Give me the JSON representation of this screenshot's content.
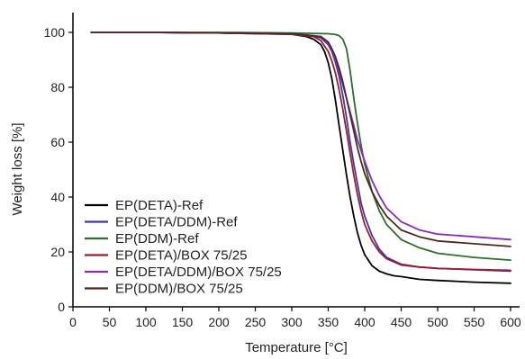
{
  "chart_data": {
    "type": "line",
    "title": "",
    "xlabel": "Temperature [°C]",
    "ylabel": "Weight loss [%]",
    "xlim": [
      0,
      600
    ],
    "ylim": [
      0,
      105
    ],
    "xticks": [
      0,
      50,
      100,
      150,
      200,
      250,
      300,
      350,
      400,
      450,
      500,
      550,
      600
    ],
    "yticks": [
      0,
      20,
      40,
      60,
      80,
      100
    ],
    "grid": false,
    "legend": "bottom-left",
    "series": [
      {
        "name": "EP(DETA)-Ref",
        "color": "#000000",
        "x": [
          25,
          100,
          200,
          300,
          320,
          330,
          340,
          345,
          350,
          355,
          360,
          365,
          370,
          375,
          380,
          385,
          390,
          395,
          400,
          410,
          420,
          430,
          440,
          450,
          475,
          500,
          550,
          600
        ],
        "y": [
          100,
          100,
          99.8,
          99.3,
          98.5,
          97.5,
          95.5,
          93,
          89,
          83,
          75,
          66,
          57,
          48,
          40,
          33,
          27,
          22.5,
          19,
          15,
          13,
          12,
          11.3,
          11,
          10,
          9.6,
          9,
          8.6
        ]
      },
      {
        "name": "EP(DETA/DDM)-Ref",
        "color": "#3a3aa8",
        "x": [
          25,
          100,
          200,
          300,
          330,
          340,
          350,
          355,
          360,
          365,
          370,
          375,
          380,
          385,
          390,
          395,
          400,
          410,
          420,
          430,
          450,
          475,
          500,
          550,
          600
        ],
        "y": [
          100,
          100,
          99.8,
          99.5,
          98.8,
          98,
          95.5,
          93,
          89,
          84,
          77,
          69,
          60,
          52,
          45,
          38,
          33,
          26,
          21,
          18,
          15.5,
          14.5,
          14,
          13.5,
          13
        ]
      },
      {
        "name": "EP(DDM)-Ref",
        "color": "#2a6e2a",
        "x": [
          25,
          100,
          200,
          300,
          350,
          360,
          365,
          370,
          375,
          380,
          385,
          390,
          395,
          400,
          410,
          420,
          430,
          450,
          475,
          500,
          550,
          600
        ],
        "y": [
          100,
          100,
          100,
          99.8,
          99.5,
          99.2,
          98.8,
          97.5,
          94,
          86,
          76,
          67,
          59,
          52,
          42,
          35,
          30,
          24.5,
          21.5,
          19.5,
          18,
          17
        ]
      },
      {
        "name": "EP(DETA)/BOX 75/25",
        "color": "#a01c2c",
        "x": [
          25,
          100,
          200,
          300,
          330,
          340,
          350,
          355,
          360,
          365,
          370,
          375,
          380,
          385,
          390,
          395,
          400,
          410,
          420,
          430,
          450,
          475,
          500,
          550,
          600
        ],
        "y": [
          100,
          100,
          99.8,
          99.3,
          98.5,
          97,
          93,
          89.5,
          85,
          79,
          72,
          64,
          56,
          48,
          41,
          35,
          30,
          24,
          20,
          17.5,
          15.2,
          14.5,
          14,
          13.6,
          13.3
        ]
      },
      {
        "name": "EP(DETA/DDM)/BOX 75/25",
        "color": "#8a2ac0",
        "x": [
          25,
          100,
          200,
          300,
          340,
          350,
          355,
          360,
          365,
          370,
          375,
          380,
          385,
          390,
          395,
          400,
          410,
          420,
          430,
          450,
          475,
          500,
          550,
          600
        ],
        "y": [
          100,
          100,
          99.8,
          99.5,
          98.5,
          96,
          93.5,
          90,
          86,
          81,
          76,
          71,
          66,
          61,
          57,
          53,
          46,
          40.5,
          36,
          31,
          28,
          26.5,
          25.5,
          24.5
        ]
      },
      {
        "name": "EP(DDM)/BOX 75/25",
        "color": "#4a2a20",
        "x": [
          25,
          100,
          200,
          300,
          340,
          350,
          355,
          360,
          365,
          370,
          375,
          380,
          385,
          390,
          395,
          400,
          410,
          420,
          430,
          450,
          475,
          500,
          550,
          600
        ],
        "y": [
          100,
          100,
          99.8,
          99.5,
          98.5,
          96.5,
          94,
          91,
          87,
          82,
          76,
          70,
          64,
          58,
          53,
          48.5,
          42,
          37,
          33,
          28,
          25.5,
          24,
          23,
          22
        ]
      }
    ]
  }
}
